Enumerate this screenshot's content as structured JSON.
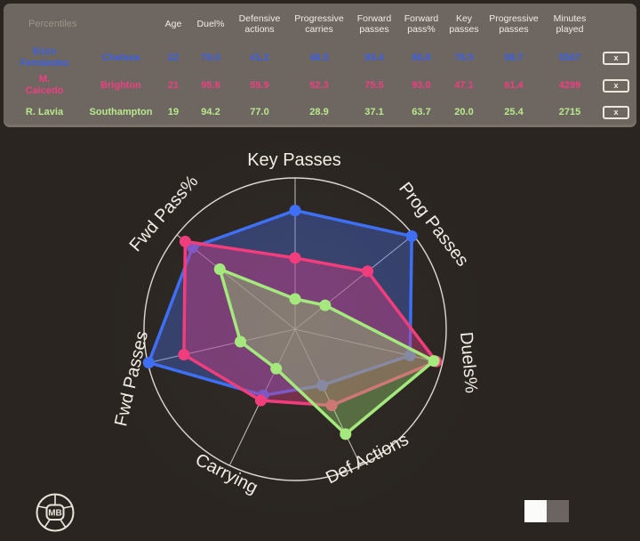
{
  "colors": {
    "page_bg": "#2a2521",
    "panel_bg": "#6e6761",
    "header_text": "#f1ebe2",
    "muted_text": "#9c948a",
    "grid_line": "#ddd8cf",
    "axis_label": "#f2ede5"
  },
  "table": {
    "corner_label": "Percentiles",
    "headers": [
      "Age",
      "Duel%",
      "Defensive actions",
      "Progressive carries",
      "Forward passes",
      "Forward pass%",
      "Key passes",
      "Progressive passes",
      "Minutes played"
    ],
    "remove_label": "x",
    "players": [
      {
        "name": "Enzo\nFernández",
        "team": "Chelsea",
        "color": "#3c5fe2",
        "values": [
          "22",
          "78.0",
          "41.2",
          "48.5",
          "99.4",
          "86.8",
          "78.5",
          "98.7",
          "5567"
        ]
      },
      {
        "name": "M.\nCaicedo",
        "team": "Brighton",
        "color": "#f23d80",
        "values": [
          "21",
          "95.8",
          "55.9",
          "52.3",
          "75.5",
          "93.0",
          "47.1",
          "61.4",
          "4299"
        ]
      },
      {
        "name": "R. Lavia",
        "team": "Southampton",
        "color": "#b9e98c",
        "values": [
          "19",
          "94.2",
          "77.0",
          "28.9",
          "37.1",
          "63.7",
          "20.0",
          "25.4",
          "2715"
        ]
      }
    ]
  },
  "chart_data": {
    "type": "radar",
    "axes": [
      "Key Passes",
      "Prog Passes",
      "Duels%",
      "Def Actions",
      "Carrying",
      "Fwd Passes",
      "Fwd Pass%"
    ],
    "range": [
      0,
      100
    ],
    "grid": "outer-circle-and-spokes",
    "series": [
      {
        "name": "Enzo Fernández",
        "color": "#3f6ff5",
        "fill": "rgba(70,110,230,0.38)",
        "values": [
          78.5,
          98.7,
          78.0,
          41.2,
          48.5,
          99.4,
          86.8
        ]
      },
      {
        "name": "M. Caicedo",
        "color": "#f23d7c",
        "fill": "rgba(215,60,130,0.42)",
        "values": [
          47.1,
          61.4,
          95.8,
          55.9,
          52.3,
          75.5,
          93.0
        ]
      },
      {
        "name": "R. Lavia",
        "color": "#a5e87e",
        "fill": "rgba(150,210,110,0.40)",
        "values": [
          20.0,
          25.4,
          94.2,
          77.0,
          28.9,
          37.1,
          63.7
        ]
      }
    ]
  },
  "footer": {
    "logo_text": "MB"
  }
}
